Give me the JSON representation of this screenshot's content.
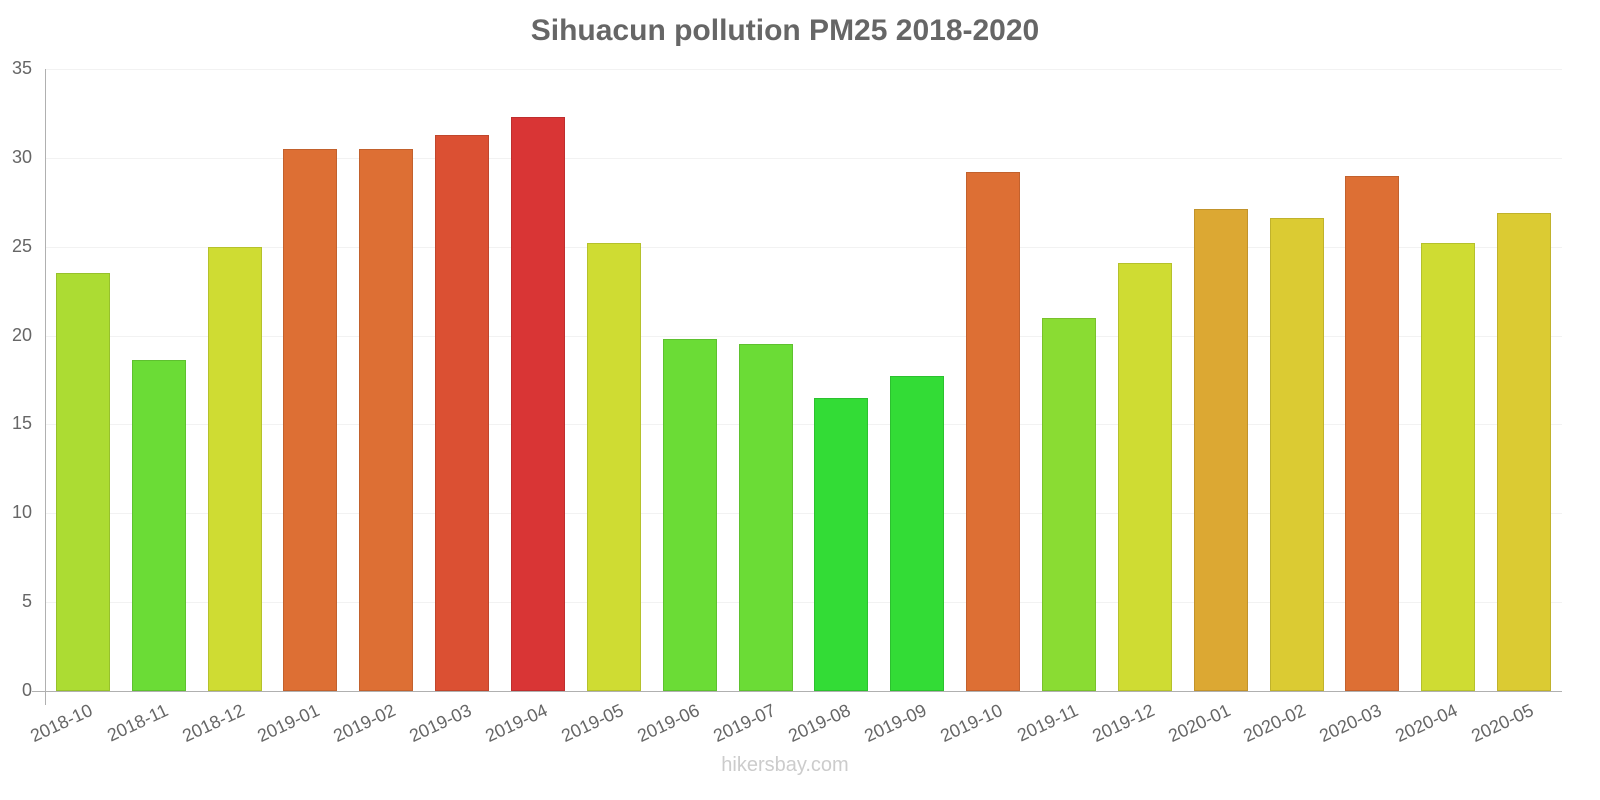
{
  "chart_data": {
    "type": "bar",
    "title": "Sihuacun pollution PM25 2018-2020",
    "xlabel": "",
    "ylabel": "",
    "ylim": [
      0,
      35
    ],
    "yticks": [
      0,
      5,
      10,
      15,
      20,
      25,
      30,
      35
    ],
    "grid": true,
    "legend": null,
    "categories": [
      "2018-10",
      "2018-11",
      "2018-12",
      "2019-01",
      "2019-02",
      "2019-03",
      "2019-04",
      "2019-05",
      "2019-06",
      "2019-07",
      "2019-08",
      "2019-09",
      "2019-10",
      "2019-11",
      "2019-12",
      "2020-01",
      "2020-02",
      "2020-03",
      "2020-04",
      "2020-05"
    ],
    "values": [
      23.5,
      18.6,
      25.0,
      30.5,
      30.5,
      31.3,
      32.3,
      25.2,
      19.8,
      19.5,
      16.5,
      17.7,
      29.2,
      21.0,
      24.1,
      27.1,
      26.6,
      29.0,
      25.2,
      26.9
    ],
    "colors": [
      "#acdc33",
      "#6bdc36",
      "#cfdc33",
      "#dd6f34",
      "#dd6f34",
      "#db5033",
      "#d93535",
      "#cfdc33",
      "#6bdc36",
      "#6bdc36",
      "#33dc36",
      "#33dc36",
      "#dd6f34",
      "#8adc33",
      "#cfdc33",
      "#dca833",
      "#dbcb33",
      "#dd6f34",
      "#cfdc33",
      "#dbcb33"
    ]
  },
  "footer": "hikersbay.com"
}
